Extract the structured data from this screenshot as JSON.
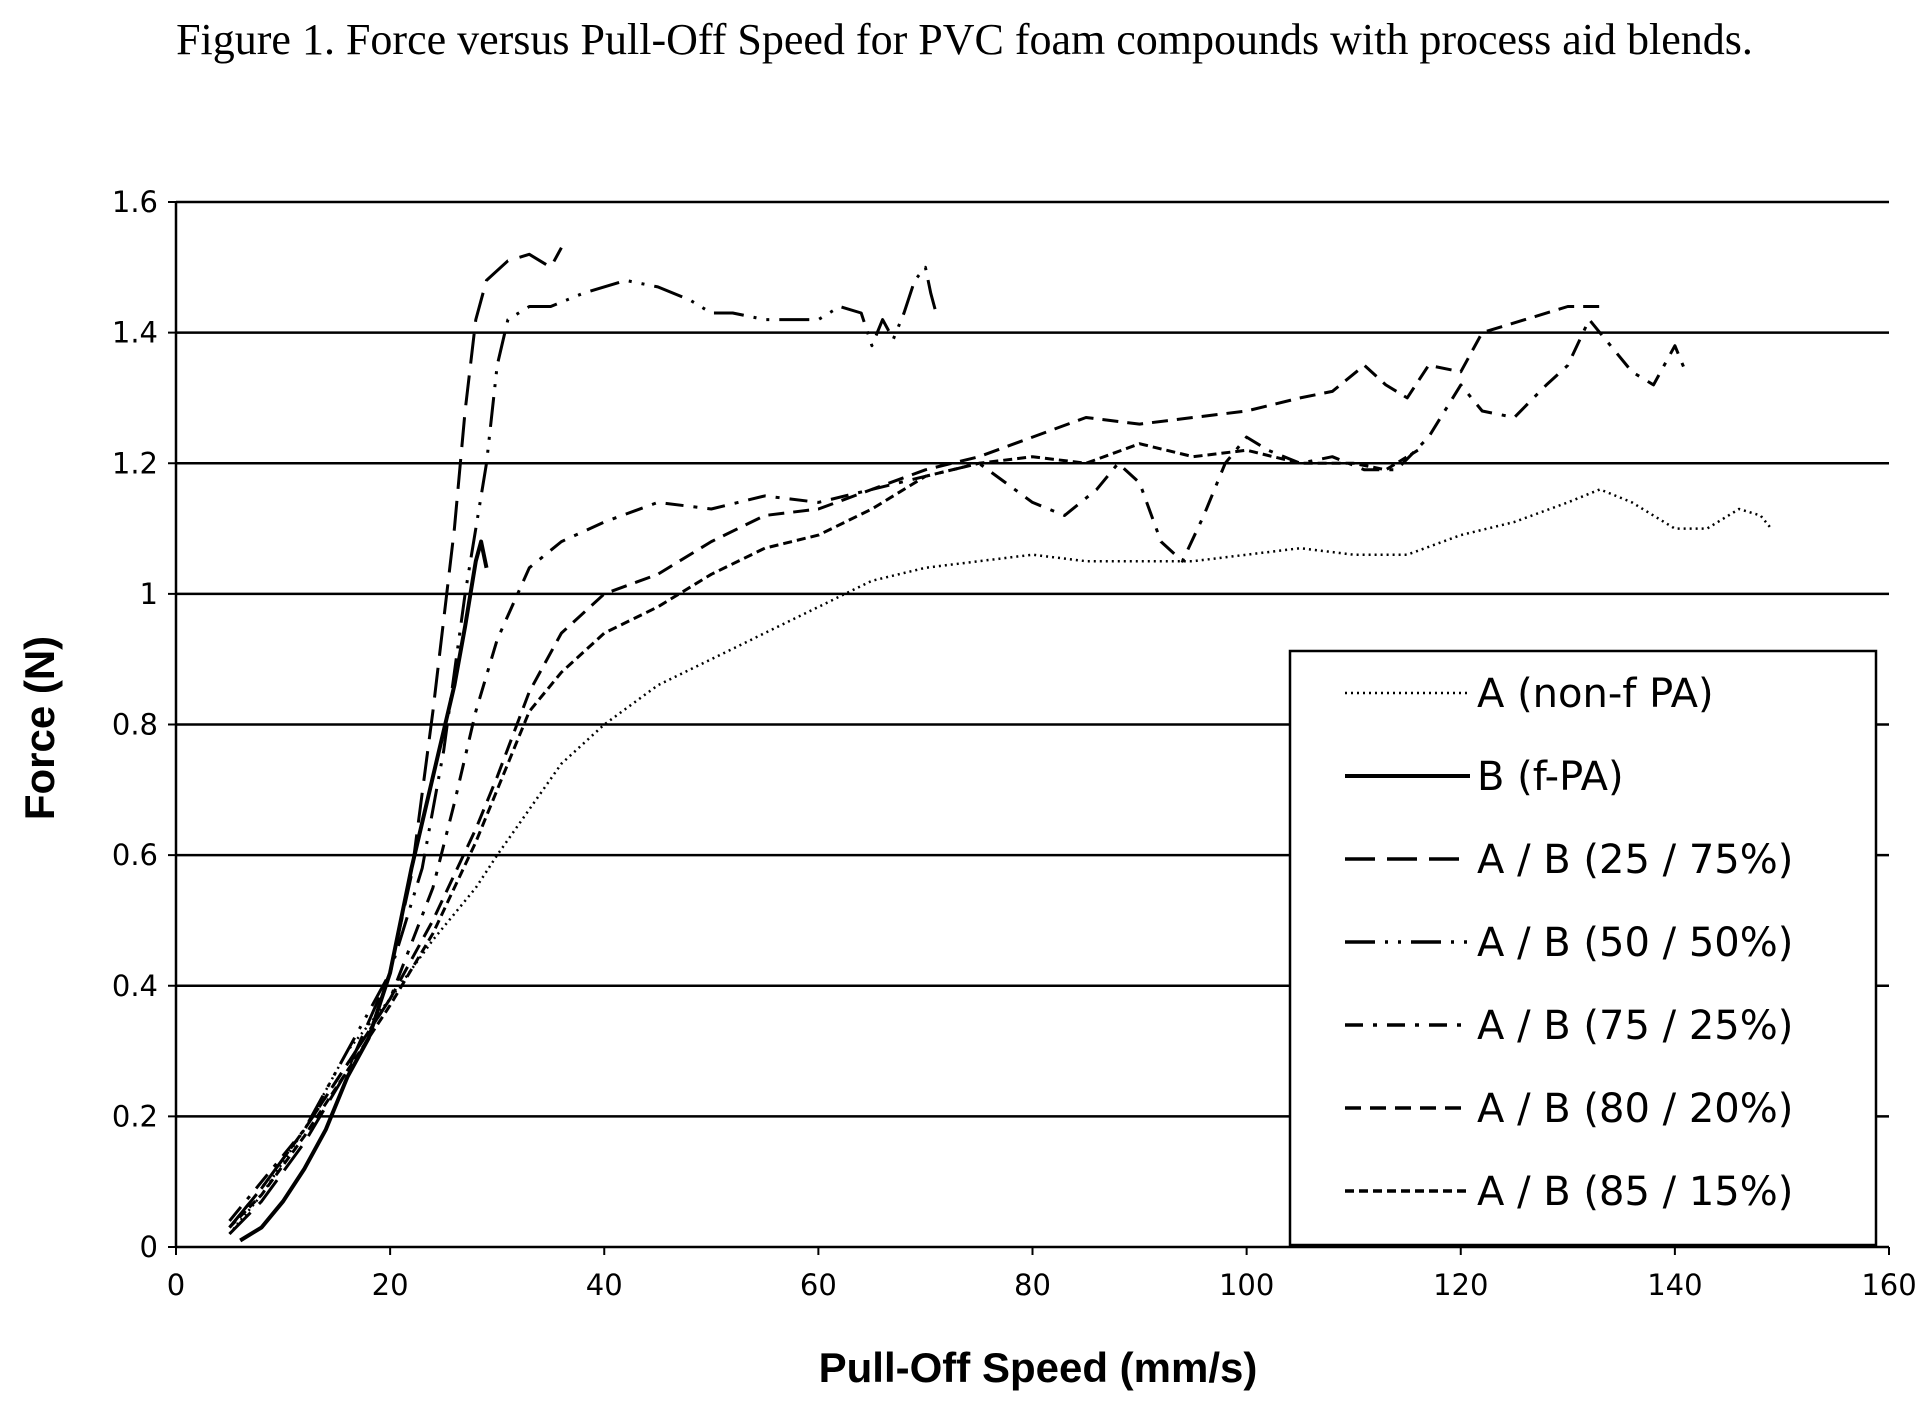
{
  "caption": "Figure 1. Force versus Pull-Off Speed for PVC foam compounds with process aid blends.",
  "chart_data": {
    "type": "line",
    "title": "Figure 1. Force versus Pull-Off Speed for PVC foam compounds with process aid blends.",
    "xlabel": "Pull-Off Speed (mm/s)",
    "ylabel": "Force (N)",
    "xlim": [
      0,
      160
    ],
    "ylim": [
      0,
      1.6
    ],
    "x_ticks": [
      "0",
      "20",
      "40",
      "60",
      "80",
      "100",
      "120",
      "140",
      "160"
    ],
    "y_ticks": [
      "0",
      "0.2",
      "0.4",
      "0.6",
      "0.8",
      "1",
      "1.2",
      "1.4",
      "1.6"
    ],
    "grid": "horizontal",
    "legend_position": "right",
    "series": [
      {
        "name": "A (non-f PA)",
        "style": "dotted",
        "points": [
          [
            5,
            0.02
          ],
          [
            8,
            0.08
          ],
          [
            12,
            0.18
          ],
          [
            16,
            0.3
          ],
          [
            20,
            0.38
          ],
          [
            24,
            0.47
          ],
          [
            28,
            0.55
          ],
          [
            30,
            0.6
          ],
          [
            33,
            0.67
          ],
          [
            36,
            0.74
          ],
          [
            40,
            0.8
          ],
          [
            45,
            0.86
          ],
          [
            50,
            0.9
          ],
          [
            55,
            0.94
          ],
          [
            60,
            0.98
          ],
          [
            65,
            1.02
          ],
          [
            70,
            1.04
          ],
          [
            75,
            1.05
          ],
          [
            80,
            1.06
          ],
          [
            85,
            1.05
          ],
          [
            90,
            1.05
          ],
          [
            95,
            1.05
          ],
          [
            100,
            1.06
          ],
          [
            105,
            1.07
          ],
          [
            110,
            1.06
          ],
          [
            115,
            1.06
          ],
          [
            120,
            1.09
          ],
          [
            125,
            1.11
          ],
          [
            130,
            1.14
          ],
          [
            133,
            1.16
          ],
          [
            136,
            1.14
          ],
          [
            140,
            1.1
          ],
          [
            143,
            1.1
          ],
          [
            146,
            1.13
          ],
          [
            148,
            1.12
          ],
          [
            149,
            1.1
          ]
        ]
      },
      {
        "name": "B (f-PA)",
        "style": "solid",
        "points": [
          [
            6,
            0.01
          ],
          [
            8,
            0.03
          ],
          [
            10,
            0.07
          ],
          [
            12,
            0.12
          ],
          [
            14,
            0.18
          ],
          [
            16,
            0.26
          ],
          [
            18,
            0.32
          ],
          [
            20,
            0.42
          ],
          [
            22,
            0.58
          ],
          [
            24,
            0.72
          ],
          [
            26,
            0.86
          ],
          [
            27,
            0.95
          ],
          [
            28,
            1.05
          ],
          [
            28.5,
            1.08
          ],
          [
            29,
            1.04
          ]
        ]
      },
      {
        "name": "A / B (25 / 75%)",
        "style": "long-dash",
        "points": [
          [
            5,
            0.02
          ],
          [
            8,
            0.07
          ],
          [
            12,
            0.16
          ],
          [
            16,
            0.27
          ],
          [
            20,
            0.42
          ],
          [
            22,
            0.57
          ],
          [
            24,
            0.82
          ],
          [
            26,
            1.1
          ],
          [
            27,
            1.28
          ],
          [
            28,
            1.42
          ],
          [
            29,
            1.48
          ],
          [
            31,
            1.51
          ],
          [
            33,
            1.52
          ],
          [
            35,
            1.5
          ],
          [
            36,
            1.53
          ]
        ]
      },
      {
        "name": "A / B (50 / 50%)",
        "style": "dash-dot-dot",
        "points": [
          [
            5,
            0.03
          ],
          [
            8,
            0.09
          ],
          [
            12,
            0.18
          ],
          [
            16,
            0.3
          ],
          [
            20,
            0.42
          ],
          [
            23,
            0.58
          ],
          [
            25,
            0.76
          ],
          [
            27,
            1.0
          ],
          [
            29,
            1.2
          ],
          [
            30,
            1.35
          ],
          [
            31,
            1.42
          ],
          [
            33,
            1.44
          ],
          [
            35,
            1.44
          ],
          [
            38,
            1.46
          ],
          [
            42,
            1.48
          ],
          [
            45,
            1.47
          ],
          [
            48,
            1.45
          ],
          [
            50,
            1.43
          ],
          [
            52,
            1.43
          ],
          [
            55,
            1.42
          ],
          [
            58,
            1.42
          ],
          [
            60,
            1.42
          ],
          [
            62,
            1.44
          ],
          [
            64,
            1.43
          ],
          [
            65,
            1.38
          ],
          [
            66,
            1.42
          ],
          [
            67,
            1.39
          ],
          [
            68,
            1.43
          ],
          [
            69,
            1.48
          ],
          [
            70,
            1.5
          ],
          [
            70.5,
            1.46
          ],
          [
            71,
            1.43
          ]
        ]
      },
      {
        "name": "A / B (75 / 25%)",
        "style": "dash-dot",
        "points": [
          [
            5,
            0.04
          ],
          [
            8,
            0.1
          ],
          [
            12,
            0.18
          ],
          [
            16,
            0.28
          ],
          [
            20,
            0.38
          ],
          [
            24,
            0.55
          ],
          [
            26,
            0.68
          ],
          [
            28,
            0.82
          ],
          [
            30,
            0.93
          ],
          [
            33,
            1.04
          ],
          [
            36,
            1.08
          ],
          [
            40,
            1.11
          ],
          [
            45,
            1.14
          ],
          [
            50,
            1.13
          ],
          [
            55,
            1.15
          ],
          [
            60,
            1.14
          ],
          [
            65,
            1.16
          ],
          [
            70,
            1.18
          ],
          [
            75,
            1.2
          ],
          [
            80,
            1.14
          ],
          [
            83,
            1.12
          ],
          [
            86,
            1.16
          ],
          [
            88,
            1.2
          ],
          [
            90,
            1.17
          ],
          [
            92,
            1.08
          ],
          [
            94,
            1.05
          ],
          [
            96,
            1.12
          ],
          [
            98,
            1.2
          ],
          [
            100,
            1.24
          ],
          [
            102,
            1.22
          ],
          [
            105,
            1.2
          ],
          [
            108,
            1.21
          ],
          [
            111,
            1.19
          ],
          [
            114,
            1.19
          ],
          [
            117,
            1.24
          ],
          [
            120,
            1.32
          ],
          [
            122,
            1.28
          ],
          [
            125,
            1.27
          ],
          [
            128,
            1.32
          ],
          [
            130,
            1.35
          ],
          [
            132,
            1.42
          ],
          [
            134,
            1.38
          ],
          [
            136,
            1.34
          ],
          [
            138,
            1.32
          ],
          [
            140,
            1.38
          ],
          [
            141,
            1.34
          ]
        ]
      },
      {
        "name": "A / B (80 / 20%)",
        "style": "dash",
        "points": [
          [
            5,
            0.03
          ],
          [
            8,
            0.09
          ],
          [
            12,
            0.18
          ],
          [
            16,
            0.28
          ],
          [
            20,
            0.38
          ],
          [
            24,
            0.5
          ],
          [
            28,
            0.64
          ],
          [
            30,
            0.72
          ],
          [
            33,
            0.85
          ],
          [
            36,
            0.94
          ],
          [
            40,
            1.0
          ],
          [
            45,
            1.03
          ],
          [
            50,
            1.08
          ],
          [
            55,
            1.12
          ],
          [
            60,
            1.13
          ],
          [
            65,
            1.16
          ],
          [
            70,
            1.19
          ],
          [
            75,
            1.21
          ],
          [
            80,
            1.24
          ],
          [
            85,
            1.27
          ],
          [
            90,
            1.26
          ],
          [
            95,
            1.27
          ],
          [
            100,
            1.28
          ],
          [
            105,
            1.3
          ],
          [
            108,
            1.31
          ],
          [
            111,
            1.35
          ],
          [
            113,
            1.32
          ],
          [
            115,
            1.3
          ],
          [
            117,
            1.35
          ],
          [
            120,
            1.34
          ],
          [
            122,
            1.4
          ],
          [
            126,
            1.42
          ],
          [
            130,
            1.44
          ],
          [
            133,
            1.44
          ]
        ]
      },
      {
        "name": "A / B (85 / 15%)",
        "style": "short-dash",
        "points": [
          [
            5,
            0.03
          ],
          [
            8,
            0.08
          ],
          [
            12,
            0.17
          ],
          [
            16,
            0.27
          ],
          [
            20,
            0.37
          ],
          [
            24,
            0.48
          ],
          [
            28,
            0.62
          ],
          [
            30,
            0.7
          ],
          [
            33,
            0.82
          ],
          [
            36,
            0.88
          ],
          [
            40,
            0.94
          ],
          [
            45,
            0.98
          ],
          [
            50,
            1.03
          ],
          [
            55,
            1.07
          ],
          [
            60,
            1.09
          ],
          [
            65,
            1.13
          ],
          [
            70,
            1.18
          ],
          [
            75,
            1.2
          ],
          [
            80,
            1.21
          ],
          [
            85,
            1.2
          ],
          [
            90,
            1.23
          ],
          [
            95,
            1.21
          ],
          [
            100,
            1.22
          ],
          [
            105,
            1.2
          ],
          [
            110,
            1.2
          ],
          [
            113,
            1.19
          ],
          [
            116,
            1.22
          ]
        ]
      }
    ]
  }
}
